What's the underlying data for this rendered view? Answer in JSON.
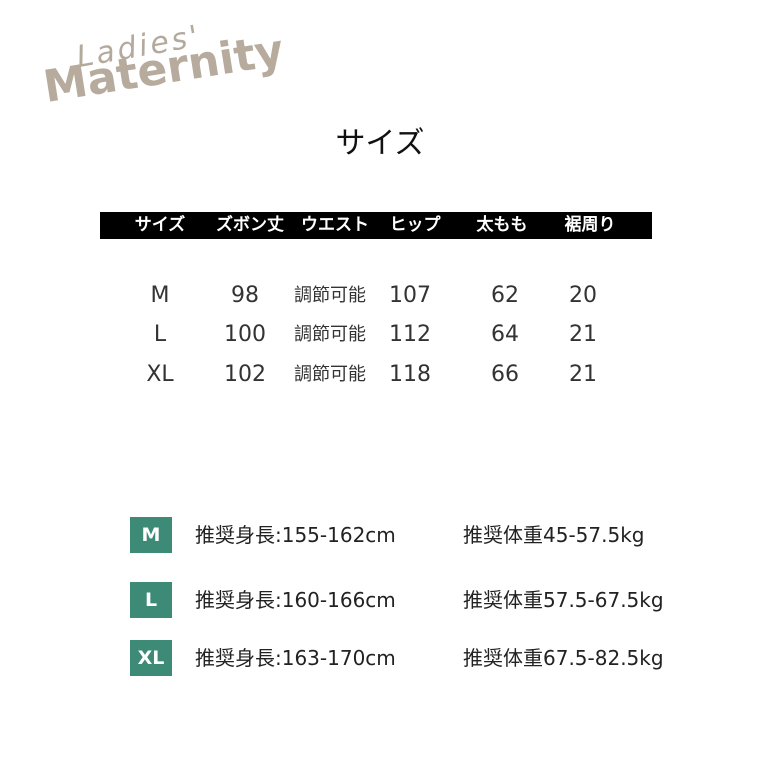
{
  "logo": {
    "line1": "Ladies'",
    "line2": "Maternity"
  },
  "title": "サイズ",
  "table": {
    "headers": [
      "サイズ",
      "ズボン丈",
      "ウエスト",
      "ヒップ",
      "太もも",
      "裾周り"
    ],
    "rows": [
      [
        "M",
        "98",
        "調節可能",
        "107",
        "62",
        "20"
      ],
      [
        "L",
        "100",
        "調節可能",
        "112",
        "64",
        "21"
      ],
      [
        "XL",
        "102",
        "調節可能",
        "118",
        "66",
        "21"
      ]
    ]
  },
  "recommendations": [
    {
      "size": "M",
      "height": "推奨身長:155-162cm",
      "weight": "推奨体重45-57.5kg"
    },
    {
      "size": "L",
      "height": "推奨身長:160-166cm",
      "weight": "推奨体重57.5-67.5kg"
    },
    {
      "size": "XL",
      "height": "推奨身長:163-170cm",
      "weight": "推奨体重67.5-82.5kg"
    }
  ]
}
